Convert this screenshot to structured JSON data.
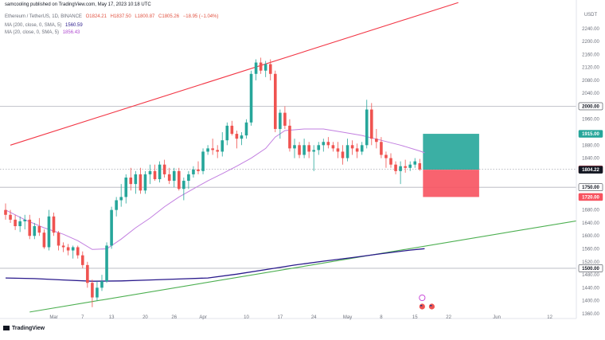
{
  "header": {
    "published": "samcooling published on TradingView.com, May 17, 2023 10:18 UTC",
    "symbol": "Ethereum / TetherUS, 1D, BINANCE",
    "ohlc": {
      "o": "O1824.21",
      "h": "H1837.50",
      "l": "L1800.87",
      "c": "C1805.26",
      "change": "−18.95 (−1.04%)"
    },
    "ma200_label": "MA (200, close, 0, SMA, 5)",
    "ma200_value": "1560.59",
    "ma20_label": "MA (20, close, 0, SMA, 5)",
    "ma20_value": "1856.43"
  },
  "footer": {
    "brand": "TradingView"
  },
  "colors": {
    "up": "#26a69a",
    "down": "#ef5350",
    "ma200": "#2a1a8c",
    "ma20": "#c27fe0",
    "upper_trendline": "#f23645",
    "lower_trendline": "#4caf50",
    "profit_zone": "#26a69a",
    "loss_zone": "#f7525f"
  },
  "chart_data": {
    "type": "candlestick",
    "currency": "USDT",
    "ylim": [
      1345,
      2328
    ],
    "y_ticks": [
      1360,
      1400,
      1440,
      1480,
      1520,
      1560,
      1600,
      1640,
      1680,
      1840,
      1880,
      1920,
      1960,
      2040,
      2080,
      2120,
      2160,
      2200,
      2240
    ],
    "x_ticks": [
      {
        "label": "Mar",
        "i": 10
      },
      {
        "label": "7",
        "i": 16
      },
      {
        "label": "13",
        "i": 22
      },
      {
        "label": "20",
        "i": 29
      },
      {
        "label": "26",
        "i": 35
      },
      {
        "label": "Apr",
        "i": 41
      },
      {
        "label": "10",
        "i": 50
      },
      {
        "label": "17",
        "i": 57
      },
      {
        "label": "24",
        "i": 64
      },
      {
        "label": "May",
        "i": 71
      },
      {
        "label": "8",
        "i": 78
      },
      {
        "label": "15",
        "i": 85
      },
      {
        "label": "22",
        "i": 92
      },
      {
        "label": "Jun",
        "i": 102
      },
      {
        "label": "12",
        "i": 113
      }
    ],
    "ohlc": [
      [
        1680,
        1700,
        1650,
        1665
      ],
      [
        1665,
        1680,
        1640,
        1650
      ],
      [
        1650,
        1665,
        1618,
        1630
      ],
      [
        1630,
        1660,
        1612,
        1645
      ],
      [
        1645,
        1665,
        1620,
        1650
      ],
      [
        1650,
        1665,
        1590,
        1600
      ],
      [
        1600,
        1640,
        1590,
        1630
      ],
      [
        1630,
        1655,
        1600,
        1610
      ],
      [
        1610,
        1620,
        1560,
        1565
      ],
      [
        1565,
        1680,
        1555,
        1660
      ],
      [
        1660,
        1672,
        1600,
        1610
      ],
      [
        1610,
        1615,
        1555,
        1570
      ],
      [
        1570,
        1580,
        1550,
        1565
      ],
      [
        1565,
        1575,
        1540,
        1555
      ],
      [
        1555,
        1570,
        1530,
        1565
      ],
      [
        1565,
        1570,
        1530,
        1540
      ],
      [
        1540,
        1552,
        1500,
        1510
      ],
      [
        1510,
        1520,
        1440,
        1455
      ],
      [
        1455,
        1465,
        1380,
        1410
      ],
      [
        1410,
        1460,
        1400,
        1440
      ],
      [
        1440,
        1480,
        1430,
        1460
      ],
      [
        1460,
        1580,
        1455,
        1570
      ],
      [
        1570,
        1690,
        1560,
        1680
      ],
      [
        1680,
        1720,
        1660,
        1710
      ],
      [
        1710,
        1760,
        1690,
        1720
      ],
      [
        1720,
        1790,
        1700,
        1780
      ],
      [
        1780,
        1810,
        1740,
        1760
      ],
      [
        1760,
        1800,
        1730,
        1790
      ],
      [
        1790,
        1810,
        1730,
        1740
      ],
      [
        1740,
        1800,
        1730,
        1790
      ],
      [
        1790,
        1820,
        1760,
        1800
      ],
      [
        1800,
        1820,
        1770,
        1775
      ],
      [
        1775,
        1830,
        1765,
        1820
      ],
      [
        1820,
        1835,
        1780,
        1790
      ],
      [
        1790,
        1810,
        1760,
        1770
      ],
      [
        1770,
        1810,
        1750,
        1800
      ],
      [
        1800,
        1810,
        1740,
        1745
      ],
      [
        1745,
        1780,
        1710,
        1770
      ],
      [
        1770,
        1800,
        1745,
        1790
      ],
      [
        1790,
        1815,
        1780,
        1805
      ],
      [
        1805,
        1830,
        1790,
        1800
      ],
      [
        1800,
        1870,
        1790,
        1860
      ],
      [
        1860,
        1880,
        1850,
        1870
      ],
      [
        1870,
        1900,
        1850,
        1865
      ],
      [
        1865,
        1880,
        1840,
        1860
      ],
      [
        1860,
        1920,
        1845,
        1895
      ],
      [
        1895,
        1950,
        1880,
        1940
      ],
      [
        1940,
        1955,
        1910,
        1915
      ],
      [
        1915,
        1925,
        1870,
        1900
      ],
      [
        1900,
        1920,
        1880,
        1910
      ],
      [
        1910,
        1960,
        1900,
        1950
      ],
      [
        1950,
        2110,
        1940,
        2100
      ],
      [
        2100,
        2145,
        2080,
        2135
      ],
      [
        2135,
        2150,
        2100,
        2110
      ],
      [
        2110,
        2140,
        2090,
        2130
      ],
      [
        2130,
        2145,
        2080,
        2100
      ],
      [
        2100,
        2110,
        1920,
        1930
      ],
      [
        1930,
        1990,
        1900,
        1980
      ],
      [
        1980,
        2000,
        1930,
        1940
      ],
      [
        1940,
        1960,
        1860,
        1870
      ],
      [
        1870,
        1900,
        1840,
        1880
      ],
      [
        1880,
        1890,
        1840,
        1850
      ],
      [
        1850,
        1900,
        1840,
        1880
      ],
      [
        1880,
        1890,
        1840,
        1860
      ],
      [
        1860,
        1880,
        1800,
        1865
      ],
      [
        1865,
        1890,
        1850,
        1880
      ],
      [
        1880,
        1900,
        1860,
        1890
      ],
      [
        1890,
        1905,
        1870,
        1880
      ],
      [
        1880,
        1890,
        1860,
        1870
      ],
      [
        1870,
        1890,
        1840,
        1860
      ],
      [
        1860,
        1880,
        1820,
        1840
      ],
      [
        1840,
        1900,
        1830,
        1880
      ],
      [
        1880,
        1895,
        1850,
        1870
      ],
      [
        1870,
        1885,
        1840,
        1860
      ],
      [
        1860,
        1890,
        1850,
        1880
      ],
      [
        1880,
        2020,
        1870,
        1990
      ],
      [
        1990,
        2010,
        1880,
        1900
      ],
      [
        1900,
        1930,
        1870,
        1890
      ],
      [
        1890,
        1905,
        1840,
        1850
      ],
      [
        1850,
        1860,
        1810,
        1840
      ],
      [
        1840,
        1855,
        1810,
        1820
      ],
      [
        1820,
        1830,
        1790,
        1800
      ],
      [
        1800,
        1830,
        1760,
        1815
      ],
      [
        1815,
        1835,
        1795,
        1810
      ],
      [
        1810,
        1830,
        1800,
        1820
      ],
      [
        1820,
        1840,
        1810,
        1830
      ],
      [
        1824.21,
        1837.5,
        1800.87,
        1805.26
      ]
    ],
    "ma20": [
      [
        0,
        1680
      ],
      [
        4,
        1650
      ],
      [
        8,
        1625
      ],
      [
        12,
        1605
      ],
      [
        15,
        1585
      ],
      [
        18,
        1558
      ],
      [
        21,
        1560
      ],
      [
        24,
        1590
      ],
      [
        27,
        1625
      ],
      [
        30,
        1655
      ],
      [
        33,
        1690
      ],
      [
        36,
        1720
      ],
      [
        39,
        1745
      ],
      [
        42,
        1770
      ],
      [
        45,
        1792
      ],
      [
        48,
        1815
      ],
      [
        51,
        1840
      ],
      [
        54,
        1870
      ],
      [
        56,
        1905
      ],
      [
        58,
        1925
      ],
      [
        62,
        1930
      ],
      [
        66,
        1930
      ],
      [
        70,
        1920
      ],
      [
        74,
        1910
      ],
      [
        78,
        1895
      ],
      [
        82,
        1880
      ],
      [
        86,
        1862
      ],
      [
        87,
        1856.43
      ]
    ],
    "ma200": [
      [
        0,
        1470
      ],
      [
        6,
        1468
      ],
      [
        12,
        1464
      ],
      [
        18,
        1460
      ],
      [
        24,
        1461
      ],
      [
        30,
        1464
      ],
      [
        36,
        1467
      ],
      [
        42,
        1470
      ],
      [
        48,
        1482
      ],
      [
        54,
        1496
      ],
      [
        60,
        1510
      ],
      [
        66,
        1522
      ],
      [
        72,
        1533
      ],
      [
        78,
        1545
      ],
      [
        84,
        1556
      ],
      [
        87,
        1560.59
      ]
    ],
    "trendlines": [
      {
        "name": "upper",
        "i1": 1,
        "p1": 1880,
        "i2": 94,
        "p2": 2320
      },
      {
        "name": "lower",
        "i1": 5,
        "p1": 1365,
        "i2": 120,
        "p2": 1650
      }
    ],
    "horizontal_lines": [
      2000,
      1750,
      1500
    ],
    "dotted_price_line": 1805.26,
    "position": {
      "i_start": 87,
      "i_end": 98,
      "entry": 1804.22,
      "target": 1915.0,
      "stop": 1720.0
    },
    "price_labels": [
      {
        "value": 2000,
        "text": "2000.00"
      },
      {
        "value": 1915,
        "text": "1915.00"
      },
      {
        "value": 1805.26,
        "text": "1805.26"
      },
      {
        "value": 1804.22,
        "text": "1804.22"
      },
      {
        "value": 1750,
        "text": "1750.00"
      },
      {
        "value": 1720,
        "text": "1720.00"
      },
      {
        "value": 1500,
        "text": "1500.00"
      }
    ]
  }
}
